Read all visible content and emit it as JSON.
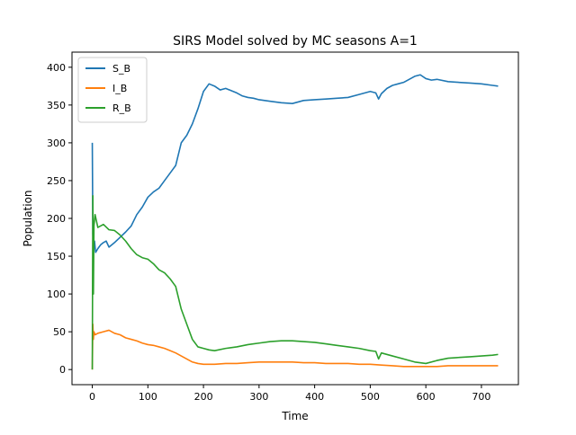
{
  "chart_data": {
    "type": "line",
    "title": "SIRS Model solved by MC seasons A=1",
    "xlabel": "Time",
    "ylabel": "Population",
    "xlim": [
      -36.5,
      766.5
    ],
    "ylim": [
      -20,
      420
    ],
    "xticks": [
      0,
      100,
      200,
      300,
      400,
      500,
      600,
      700
    ],
    "yticks": [
      0,
      50,
      100,
      150,
      200,
      250,
      300,
      350,
      400
    ],
    "legend_position": "upper-left",
    "grid": false,
    "series": [
      {
        "name": "S_B",
        "color": "#1f77b4",
        "x": [
          0,
          1,
          2,
          4,
          6,
          10,
          15,
          20,
          25,
          30,
          40,
          50,
          60,
          70,
          80,
          90,
          100,
          110,
          120,
          130,
          140,
          150,
          160,
          170,
          180,
          190,
          200,
          210,
          220,
          230,
          240,
          250,
          260,
          270,
          280,
          290,
          300,
          320,
          340,
          360,
          380,
          400,
          420,
          440,
          460,
          480,
          500,
          510,
          515,
          520,
          530,
          540,
          550,
          560,
          570,
          580,
          590,
          600,
          610,
          620,
          640,
          660,
          680,
          700,
          720,
          730
        ],
        "y": [
          300,
          180,
          160,
          170,
          155,
          160,
          165,
          168,
          170,
          162,
          168,
          175,
          182,
          190,
          205,
          215,
          228,
          235,
          240,
          250,
          260,
          270,
          300,
          310,
          325,
          345,
          368,
          378,
          375,
          370,
          372,
          369,
          366,
          362,
          360,
          359,
          357,
          355,
          353,
          352,
          356,
          357,
          358,
          359,
          360,
          364,
          368,
          366,
          358,
          365,
          372,
          376,
          378,
          380,
          384,
          388,
          390,
          385,
          383,
          384,
          381,
          380,
          379,
          378,
          376,
          375
        ]
      },
      {
        "name": "I_B",
        "color": "#ff7f0e",
        "x": [
          0,
          1,
          2,
          3,
          5,
          10,
          20,
          30,
          40,
          50,
          60,
          70,
          80,
          90,
          100,
          110,
          120,
          130,
          140,
          150,
          160,
          170,
          180,
          190,
          200,
          220,
          240,
          260,
          280,
          300,
          320,
          340,
          360,
          380,
          400,
          420,
          440,
          460,
          480,
          500,
          520,
          540,
          560,
          580,
          600,
          620,
          640,
          660,
          680,
          700,
          720,
          730
        ],
        "y": [
          0,
          60,
          40,
          50,
          46,
          48,
          50,
          52,
          48,
          46,
          42,
          40,
          38,
          35,
          33,
          32,
          30,
          28,
          25,
          22,
          18,
          14,
          10,
          8,
          7,
          7,
          8,
          8,
          9,
          10,
          10,
          10,
          10,
          9,
          9,
          8,
          8,
          8,
          7,
          7,
          6,
          5,
          4,
          4,
          4,
          4,
          5,
          5,
          5,
          5,
          5,
          5
        ]
      },
      {
        "name": "R_B",
        "color": "#2ca02c",
        "x": [
          0,
          1,
          2,
          3,
          5,
          10,
          20,
          30,
          40,
          50,
          60,
          70,
          80,
          90,
          100,
          110,
          120,
          130,
          140,
          150,
          160,
          170,
          180,
          190,
          200,
          210,
          220,
          240,
          260,
          280,
          300,
          320,
          340,
          360,
          380,
          400,
          420,
          440,
          460,
          480,
          500,
          510,
          515,
          520,
          540,
          560,
          580,
          600,
          620,
          640,
          660,
          680,
          700,
          720,
          730
        ],
        "y": [
          0,
          230,
          100,
          190,
          205,
          188,
          192,
          185,
          184,
          178,
          170,
          160,
          152,
          148,
          146,
          140,
          132,
          128,
          120,
          110,
          80,
          60,
          40,
          30,
          28,
          26,
          25,
          28,
          30,
          33,
          35,
          37,
          38,
          38,
          37,
          36,
          34,
          32,
          30,
          28,
          25,
          24,
          14,
          22,
          18,
          14,
          10,
          8,
          12,
          15,
          16,
          17,
          18,
          19,
          20
        ]
      }
    ]
  }
}
